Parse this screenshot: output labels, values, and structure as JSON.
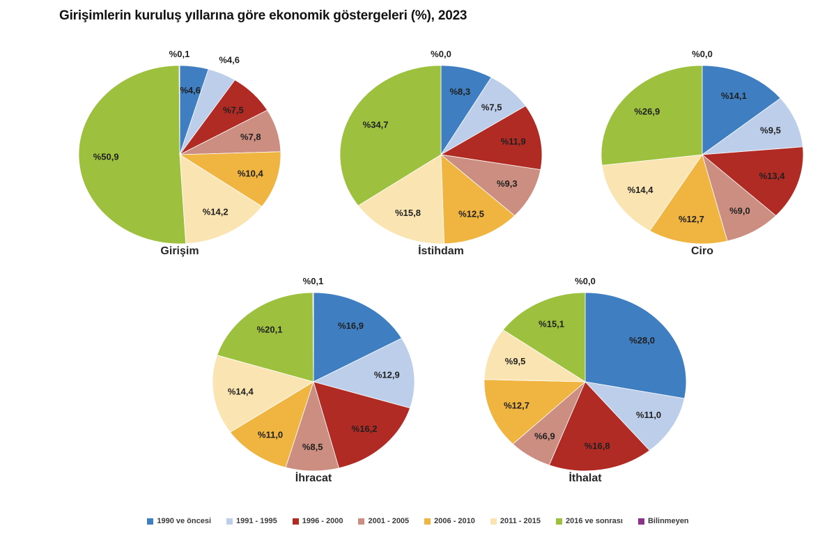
{
  "page": {
    "title": "Girişimlerin kuruluş yıllarına göre ekonomik göstergeleri (%), 2023",
    "background_color": "#ffffff"
  },
  "legend": {
    "position": "bottom",
    "items": [
      {
        "label": "1990 ve öncesi",
        "color": "#3E7EC1"
      },
      {
        "label": "1991 - 1995",
        "color": "#BCCEE9"
      },
      {
        "label": "1996 - 2000",
        "color": "#B12B25"
      },
      {
        "label": "2001 - 2005",
        "color": "#CC8E80"
      },
      {
        "label": "2006 - 2010",
        "color": "#F0B440"
      },
      {
        "label": "2011 - 2015",
        "color": "#FAE5B2"
      },
      {
        "label": "2016 ve sonrası",
        "color": "#9DC13E"
      },
      {
        "label": "Bilinmeyen",
        "color": "#8C318C"
      }
    ]
  },
  "chart_data": {
    "type": "pie",
    "title": "Girişimlerin kuruluş yıllarına göre ekonomik göstergeleri (%), 2023",
    "unit": "%",
    "decimal_separator": ",",
    "legend_position": "bottom",
    "label_color": "#1F1F1F",
    "categories": [
      "1990 ve öncesi",
      "1991 - 1995",
      "1996 - 2000",
      "2001 - 2005",
      "2006 - 2010",
      "2011 - 2015",
      "2016 ve sonrası",
      "Bilinmeyen"
    ],
    "colors": [
      "#3E7EC1",
      "#BCCEE9",
      "#B12B25",
      "#CC8E80",
      "#F0B440",
      "#FAE5B2",
      "#9DC13E",
      "#8C318C"
    ],
    "series": [
      {
        "name": "Girişim",
        "values": [
          4.6,
          4.6,
          7.5,
          7.8,
          10.4,
          14.2,
          50.9,
          0.1
        ],
        "value_labels": [
          "%4,6",
          "%4,6",
          "%7,5",
          "%7,8",
          "%10,4",
          "%14,2",
          "%50,9",
          "%0,1"
        ],
        "outside_label_indices": [
          1
        ]
      },
      {
        "name": "İstihdam",
        "values": [
          8.3,
          7.5,
          11.9,
          9.3,
          12.5,
          15.8,
          34.7,
          0.0
        ],
        "value_labels": [
          "%8,3",
          "%7,5",
          "%11,9",
          "%9,3",
          "%12,5",
          "%15,8",
          "%34,7",
          "%0,0"
        ],
        "outside_label_indices": []
      },
      {
        "name": "Ciro",
        "values": [
          14.1,
          9.5,
          13.4,
          9.0,
          12.7,
          14.4,
          26.9,
          0.0
        ],
        "value_labels": [
          "%14,1",
          "%9,5",
          "%13,4",
          "%9,0",
          "%12,7",
          "%14,4",
          "%26,9",
          "%0,0"
        ],
        "outside_label_indices": []
      },
      {
        "name": "İhracat",
        "values": [
          16.9,
          12.9,
          16.2,
          8.5,
          11.0,
          14.4,
          20.1,
          0.1
        ],
        "value_labels": [
          "%16,9",
          "%12,9",
          "%16,2",
          "%8,5",
          "%11,0",
          "%14,4",
          "%20,1",
          "%0,1"
        ],
        "outside_label_indices": []
      },
      {
        "name": "İthalat",
        "values": [
          28.0,
          11.0,
          16.8,
          6.9,
          12.7,
          9.5,
          15.1,
          0.0
        ],
        "value_labels": [
          "%28,0",
          "%11,0",
          "%16,8",
          "%6,9",
          "%12,7",
          "%9,5",
          "%15,1",
          "%0,0"
        ],
        "outside_label_indices": []
      }
    ]
  }
}
